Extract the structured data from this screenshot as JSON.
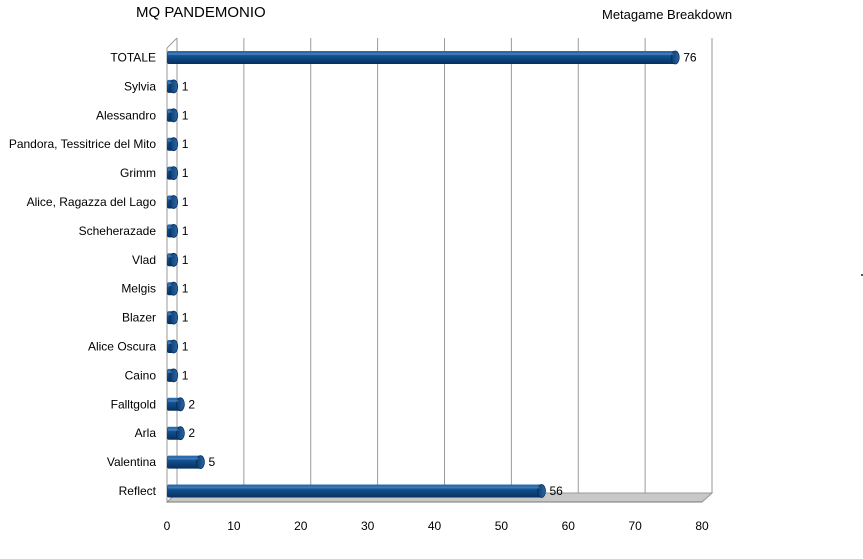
{
  "title": "MQ PANDEMONIO",
  "subtitle": "Metagame Breakdown",
  "chart_data": {
    "type": "bar",
    "orientation": "horizontal",
    "title": "MQ PANDEMONIO",
    "subtitle": "Metagame Breakdown",
    "categories": [
      "TOTALE",
      "Sylvia",
      "Alessandro",
      "Pandora, Tessitrice del Mito",
      "Grimm",
      "Alice, Ragazza del Lago",
      "Scheherazade",
      "Vlad",
      "Melgis",
      "Blazer",
      "Alice Oscura",
      "Caino",
      "Falltgold",
      "Arla",
      "Valentina",
      "Reflect"
    ],
    "values": [
      76,
      1,
      1,
      1,
      1,
      1,
      1,
      1,
      1,
      1,
      1,
      1,
      2,
      2,
      5,
      56
    ],
    "xlim": [
      0,
      80
    ],
    "xticks": [
      "0",
      "10",
      "20",
      "30",
      "40",
      "50",
      "60",
      "70",
      "80"
    ],
    "grid": "vertical",
    "bar_color": "#0f4d8c",
    "data_labels": true
  }
}
